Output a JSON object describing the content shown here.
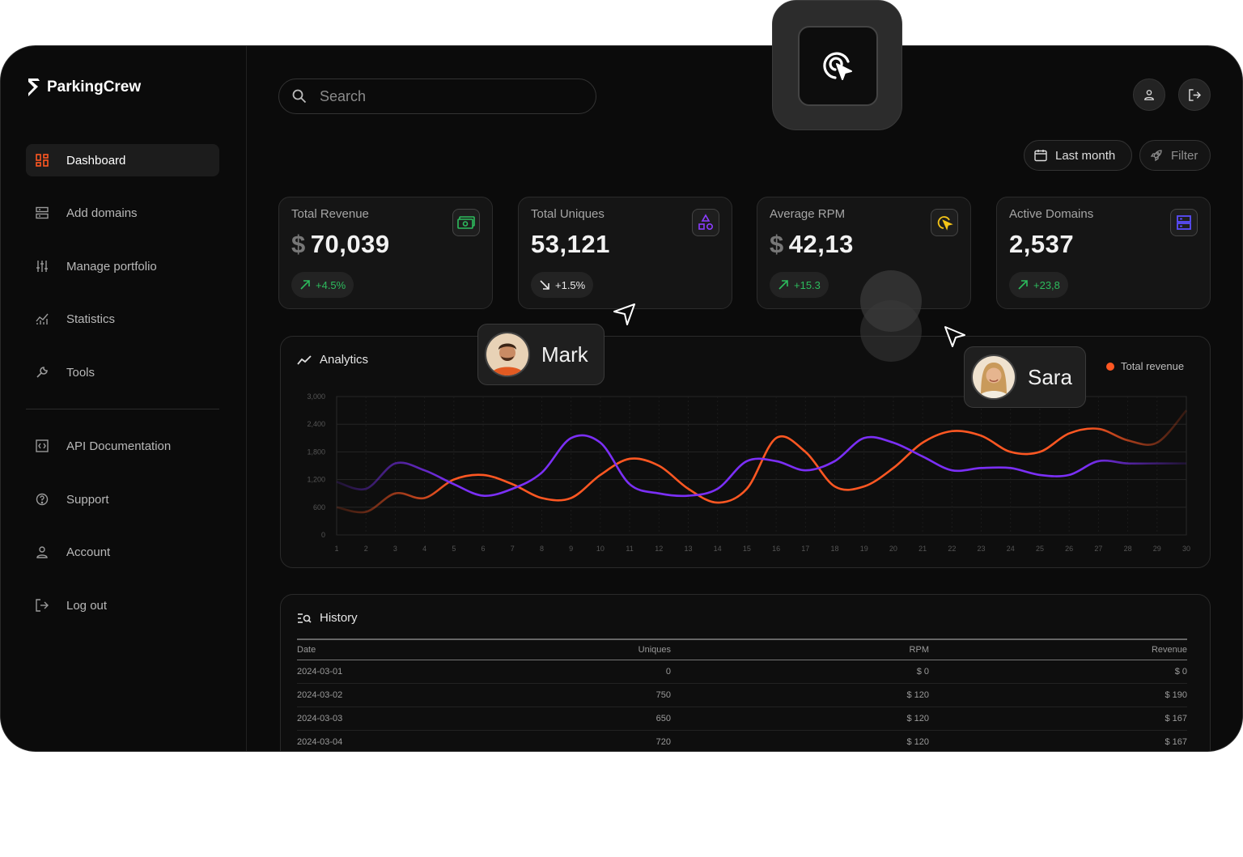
{
  "brand": {
    "name": "ParkingCrew"
  },
  "sidebar": {
    "items": [
      {
        "label": "Dashboard",
        "icon": "grid-icon",
        "active": true
      },
      {
        "label": "Add domains",
        "icon": "server-icon"
      },
      {
        "label": "Manage portfolio",
        "icon": "sliders-icon"
      },
      {
        "label": "Statistics",
        "icon": "chart-icon"
      },
      {
        "label": "Tools",
        "icon": "wrench-icon"
      }
    ],
    "secondary": [
      {
        "label": "API Documentation",
        "icon": "code-icon"
      },
      {
        "label": "Support",
        "icon": "help-icon"
      },
      {
        "label": "Account",
        "icon": "user-icon"
      },
      {
        "label": "Log out",
        "icon": "logout-icon"
      }
    ]
  },
  "header": {
    "search_placeholder": "Search",
    "date_range": "Last month",
    "filter_label": "Filter"
  },
  "cards": [
    {
      "label": "Total Revenue",
      "currency": "$",
      "value": "70,039",
      "change": "+4.5%",
      "trend": "up",
      "icon": "money-icon",
      "icon_color": "#2dbb5d"
    },
    {
      "label": "Total Uniques",
      "currency": "",
      "value": "53,121",
      "change": "+1.5%",
      "trend": "down",
      "icon": "shapes-icon",
      "icon_color": "#8b3dff"
    },
    {
      "label": "Average RPM",
      "currency": "$",
      "value": "42,13",
      "change": "+15.3",
      "trend": "up",
      "icon": "click-icon",
      "icon_color": "#f5c518"
    },
    {
      "label": "Active Domains",
      "currency": "",
      "value": "2,537",
      "change": "+23,8",
      "trend": "up",
      "icon": "server-icon",
      "icon_color": "#5b4dff"
    }
  ],
  "analytics": {
    "title": "Analytics",
    "legend": "Total revenue"
  },
  "chart_data": {
    "type": "line",
    "x": [
      1,
      2,
      3,
      4,
      5,
      6,
      7,
      8,
      9,
      10,
      11,
      12,
      13,
      14,
      15,
      16,
      17,
      18,
      19,
      20,
      21,
      22,
      23,
      24,
      25,
      26,
      27,
      28,
      29,
      30
    ],
    "yticks": [
      0,
      600,
      1200,
      1800,
      2400,
      3000
    ],
    "ylim": [
      0,
      3000
    ],
    "grid": true,
    "legend_position": "top-right",
    "series": [
      {
        "name": "Total revenue",
        "color": "#ff5722",
        "values": [
          600,
          500,
          900,
          800,
          1200,
          1300,
          1100,
          800,
          800,
          1300,
          1650,
          1500,
          1000,
          700,
          1000,
          2100,
          1800,
          1050,
          1050,
          1450,
          2000,
          2250,
          2150,
          1800,
          1800,
          2200,
          2300,
          2050,
          2000,
          2700
        ]
      },
      {
        "name": "",
        "color": "#7b2ff7",
        "values": [
          1150,
          1000,
          1550,
          1400,
          1100,
          850,
          1000,
          1350,
          2100,
          2000,
          1100,
          900,
          850,
          1000,
          1600,
          1600,
          1400,
          1600,
          2100,
          2000,
          1700,
          1400,
          1450,
          1450,
          1300,
          1300,
          1600,
          1550,
          1550,
          1550
        ]
      }
    ]
  },
  "history": {
    "title": "History",
    "columns": [
      "Date",
      "Uniques",
      "RPM",
      "Revenue"
    ],
    "rows": [
      [
        "2024-03-01",
        "0",
        "$ 0",
        "$ 0"
      ],
      [
        "2024-03-02",
        "750",
        "$ 120",
        "$ 190"
      ],
      [
        "2024-03-03",
        "650",
        "$ 120",
        "$ 167"
      ],
      [
        "2024-03-04",
        "720",
        "$ 120",
        "$ 167"
      ]
    ]
  },
  "overlays": {
    "user1": "Mark",
    "user2": "Sara"
  }
}
